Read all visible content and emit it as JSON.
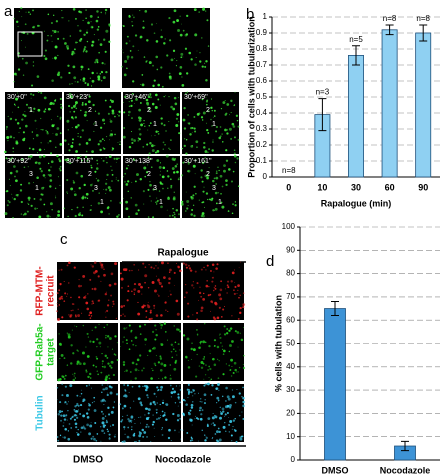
{
  "panel_a": {
    "label": "a",
    "time_labels": [
      "30'+0''",
      "30'+23''",
      "30'+46''",
      "30'+69''",
      "30'+92''",
      "30'+115''",
      "30'+138''",
      "30'+161''"
    ],
    "cell_numbers": [
      [
        "1"
      ],
      [
        "2",
        "1"
      ],
      [
        "2",
        "1"
      ],
      [
        "2",
        "1"
      ],
      [
        "3",
        "1"
      ],
      [
        "2",
        "3",
        "1"
      ],
      [
        "2",
        "3",
        "1"
      ],
      [
        "2",
        "3",
        "1"
      ]
    ]
  },
  "panel_c": {
    "label": "c",
    "header": "Rapalogue",
    "row_labels": [
      [
        "RFP-MTM-",
        "recruit"
      ],
      [
        "GFP-Rab5a-",
        "target"
      ],
      [
        "Tubulin"
      ]
    ],
    "column_labels": [
      "DMSO",
      "Nocodazole"
    ]
  },
  "chart_data": [
    {
      "type": "bar",
      "panel_label": "b",
      "ylabel": "Proportion of cells with tubularization",
      "xlabel": "Rapalogue (min)",
      "categories": [
        "0",
        "10",
        "30",
        "60",
        "90"
      ],
      "values": [
        0,
        0.39,
        0.76,
        0.92,
        0.9
      ],
      "errors": [
        0,
        0.1,
        0.06,
        0.03,
        0.05
      ],
      "annotations": [
        "n=8",
        "n=3",
        "n=5",
        "n=8",
        "n=8"
      ],
      "color": "#8fd0f2",
      "ylim": [
        0,
        1
      ],
      "yticks": [
        0,
        0.1,
        0.2,
        0.3,
        0.4,
        0.5,
        0.6,
        0.7,
        0.8,
        0.9,
        1
      ],
      "grid": true
    },
    {
      "type": "bar",
      "panel_label": "d",
      "ylabel": "% cells with tubulation",
      "categories": [
        "DMSO",
        "Nocodazole"
      ],
      "values": [
        65,
        6
      ],
      "errors": [
        3,
        2
      ],
      "color": "#3d93d6",
      "ylim": [
        0,
        100
      ],
      "yticks": [
        0,
        10,
        20,
        30,
        40,
        50,
        60,
        70,
        80,
        90,
        100
      ],
      "grid": true
    }
  ]
}
